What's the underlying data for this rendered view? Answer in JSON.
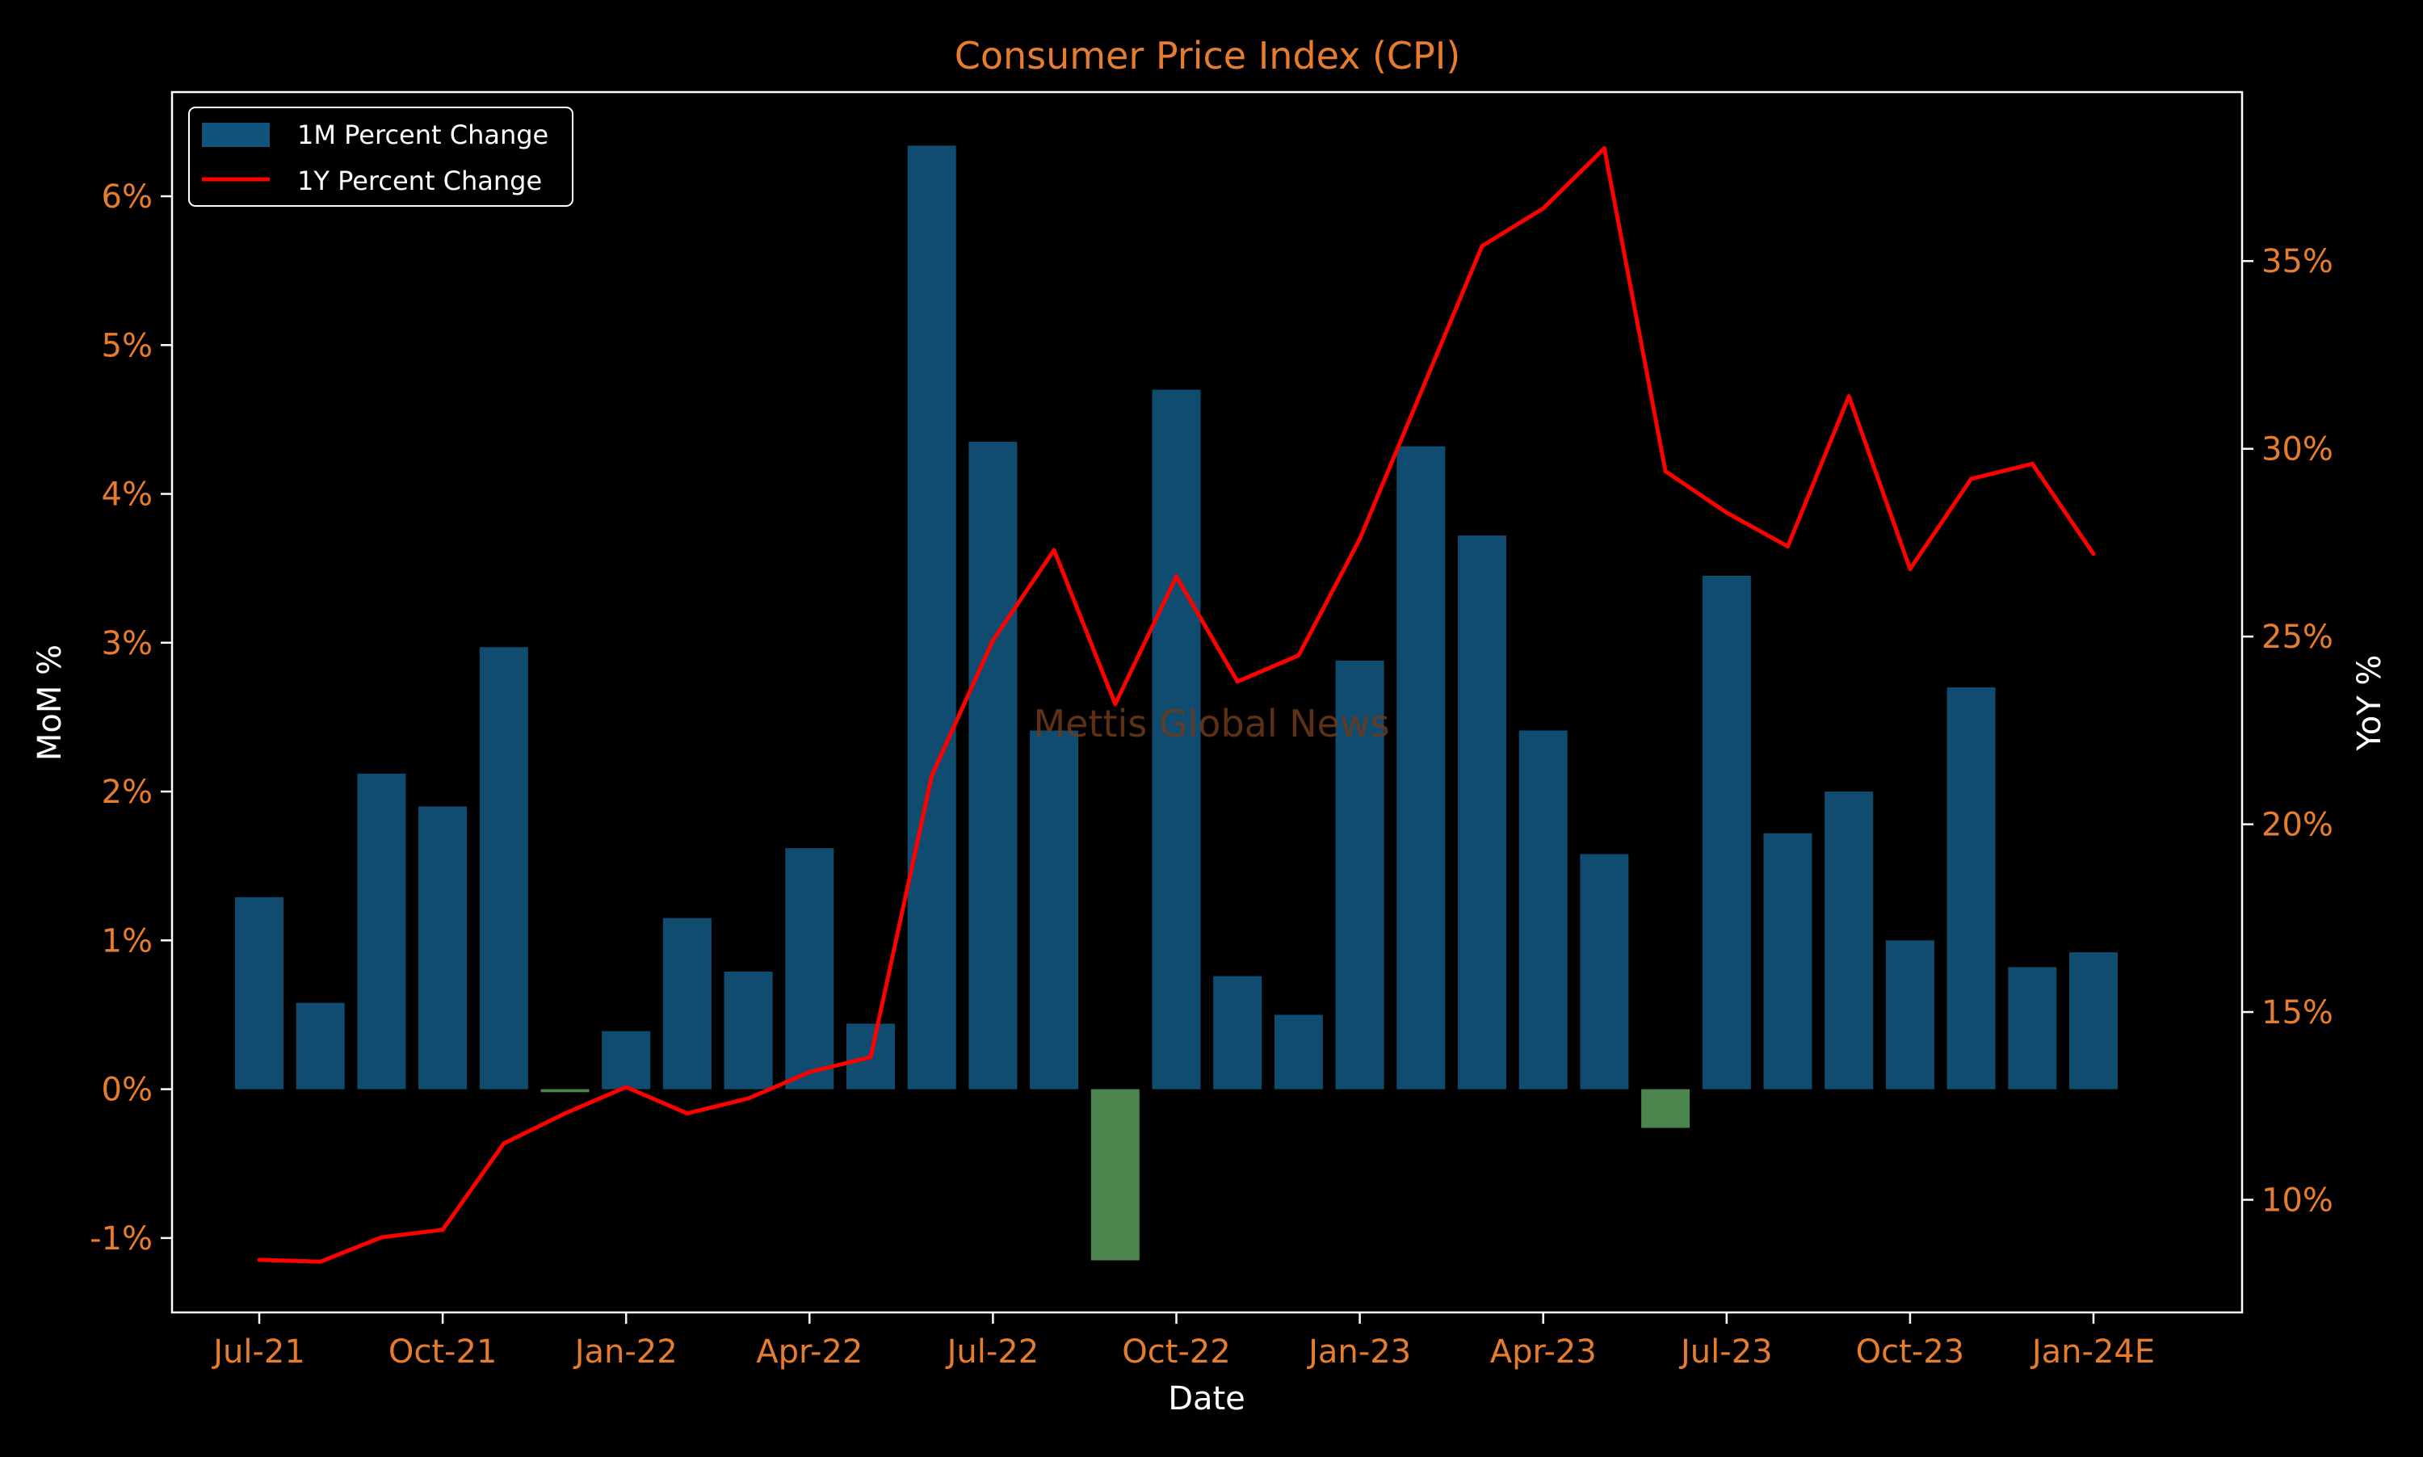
{
  "chart_data": {
    "type": "bar",
    "title": "Consumer Price Index (CPI)",
    "xlabel": "Date",
    "ylabel_left": "MoM %",
    "ylabel_right": "YoY %",
    "watermark": "Mettis Global News",
    "x": [
      "2021-07",
      "2021-08",
      "2021-09",
      "2021-10",
      "2021-11",
      "2021-12",
      "2022-01",
      "2022-02",
      "2022-03",
      "2022-04",
      "2022-05",
      "2022-06",
      "2022-07",
      "2022-08",
      "2022-09",
      "2022-10",
      "2022-11",
      "2022-12",
      "2023-01",
      "2023-02",
      "2023-03",
      "2023-04",
      "2023-05",
      "2023-06",
      "2023-07",
      "2023-08",
      "2023-09",
      "2023-10",
      "2023-11",
      "2023-12",
      "2024-01"
    ],
    "x_tick_labels": [
      {
        "label": "Jul-21",
        "x": "2021-07"
      },
      {
        "label": "Oct-21",
        "x": "2021-10"
      },
      {
        "label": "Jan-22",
        "x": "2022-01"
      },
      {
        "label": "Apr-22",
        "x": "2022-04"
      },
      {
        "label": "Jul-22",
        "x": "2022-07"
      },
      {
        "label": "Oct-22",
        "x": "2022-10"
      },
      {
        "label": "Jan-23",
        "x": "2023-01"
      },
      {
        "label": "Apr-23",
        "x": "2023-04"
      },
      {
        "label": "Jul-23",
        "x": "2023-07"
      },
      {
        "label": "Oct-23",
        "x": "2023-10"
      },
      {
        "label": "Jan-24E",
        "x": "2024-01"
      }
    ],
    "left_axis": {
      "ylim": [
        -1.5,
        6.7
      ],
      "ticks": [
        -1,
        0,
        1,
        2,
        3,
        4,
        5,
        6
      ],
      "tick_labels": [
        "-1%",
        "0%",
        "1%",
        "2%",
        "3%",
        "4%",
        "5%",
        "6%"
      ]
    },
    "right_axis": {
      "ylim": [
        7.0,
        39.5
      ],
      "ticks": [
        10,
        15,
        20,
        25,
        30,
        35
      ],
      "tick_labels": [
        "10%",
        "15%",
        "20%",
        "25%",
        "30%",
        "35%"
      ]
    },
    "series": [
      {
        "name": "1M Percent Change",
        "type": "bar",
        "axis": "left",
        "color": "#11537a",
        "negative_color": "#528f54",
        "values": [
          1.29,
          0.58,
          2.12,
          1.9,
          2.97,
          -0.02,
          0.39,
          1.15,
          0.79,
          1.62,
          0.44,
          6.34,
          4.35,
          2.41,
          -1.15,
          4.7,
          0.76,
          0.5,
          2.88,
          4.32,
          3.72,
          2.41,
          1.58,
          -0.26,
          3.45,
          1.72,
          2.0,
          1.0,
          2.7,
          0.82,
          0.92
        ]
      },
      {
        "name": "1Y Percent Change",
        "type": "line",
        "axis": "right",
        "color": "#ff0000",
        "values": [
          8.4,
          8.35,
          9.0,
          9.2,
          11.5,
          12.3,
          13.0,
          12.3,
          12.7,
          13.4,
          13.8,
          21.3,
          24.9,
          27.3,
          23.2,
          26.6,
          23.8,
          24.5,
          27.6,
          31.5,
          35.4,
          36.4,
          38.0,
          29.4,
          28.3,
          27.4,
          31.4,
          26.8,
          29.2,
          29.6,
          27.2
        ]
      }
    ],
    "legend_placement": "top-left",
    "grid": false
  },
  "colors": {
    "background": "#000000",
    "title": "#e67c2e",
    "tick_labels": "#e67c2e",
    "axis_labels": "#ffffff",
    "spines": "#ffffff",
    "watermark": "#6e3a1a"
  }
}
